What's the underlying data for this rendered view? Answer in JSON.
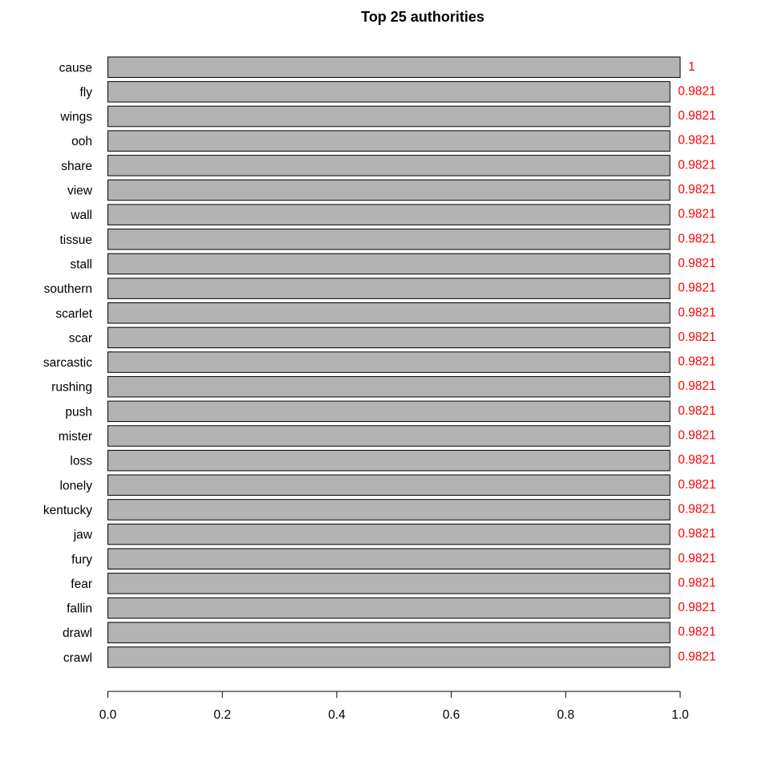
{
  "chart_data": {
    "type": "bar",
    "orientation": "horizontal",
    "title": "Top 25 authorities",
    "xlabel": "",
    "ylabel": "",
    "categories": [
      "cause",
      "fly",
      "wings",
      "ooh",
      "share",
      "view",
      "wall",
      "tissue",
      "stall",
      "southern",
      "scarlet",
      "scar",
      "sarcastic",
      "rushing",
      "push",
      "mister",
      "loss",
      "lonely",
      "kentucky",
      "jaw",
      "fury",
      "fear",
      "fallin",
      "drawl",
      "crawl"
    ],
    "values": [
      1,
      0.9821,
      0.9821,
      0.9821,
      0.9821,
      0.9821,
      0.9821,
      0.9821,
      0.9821,
      0.9821,
      0.9821,
      0.9821,
      0.9821,
      0.9821,
      0.9821,
      0.9821,
      0.9821,
      0.9821,
      0.9821,
      0.9821,
      0.9821,
      0.9821,
      0.9821,
      0.9821,
      0.9821
    ],
    "value_labels": [
      "1",
      "0.9821",
      "0.9821",
      "0.9821",
      "0.9821",
      "0.9821",
      "0.9821",
      "0.9821",
      "0.9821",
      "0.9821",
      "0.9821",
      "0.9821",
      "0.9821",
      "0.9821",
      "0.9821",
      "0.9821",
      "0.9821",
      "0.9821",
      "0.9821",
      "0.9821",
      "0.9821",
      "0.9821",
      "0.9821",
      "0.9821",
      "0.9821"
    ],
    "xlim": [
      0,
      1
    ],
    "x_ticks": [
      "0.0",
      "0.2",
      "0.4",
      "0.6",
      "0.8",
      "1.0"
    ],
    "grid": false,
    "bar_color": "#b3b3b3",
    "bar_border_color": "#000000",
    "value_label_color": "#ff0000"
  }
}
